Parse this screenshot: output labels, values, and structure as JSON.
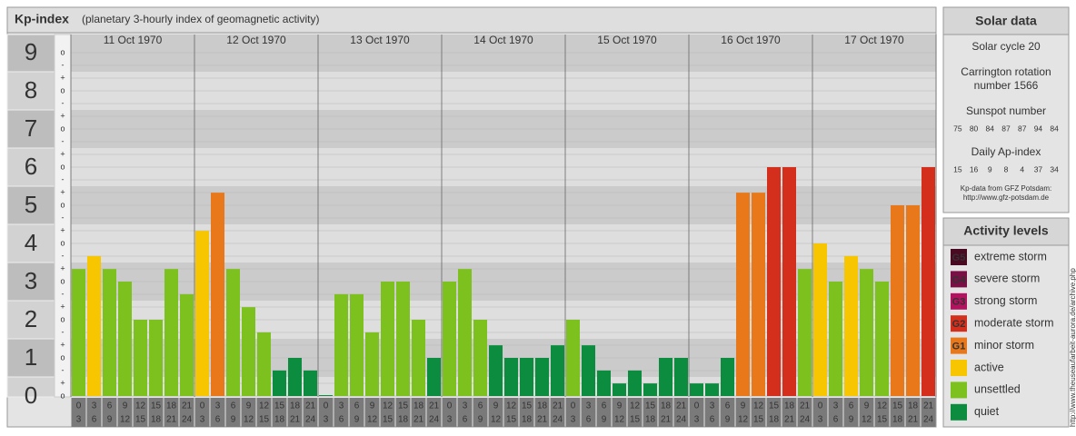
{
  "header": {
    "title": "Kp-index",
    "subtitle": "(planetary 3-hourly index of geomagnetic activity)"
  },
  "chart_data": {
    "type": "bar",
    "ylim": [
      0,
      9
    ],
    "yticks": [
      0,
      1,
      2,
      3,
      4,
      5,
      6,
      7,
      8,
      9
    ],
    "subtick_labels": [
      "-",
      "o",
      "+"
    ],
    "hours": [
      [
        "0",
        "3"
      ],
      [
        "3",
        "6"
      ],
      [
        "6",
        "9"
      ],
      [
        "9",
        "12"
      ],
      [
        "12",
        "15"
      ],
      [
        "15",
        "18"
      ],
      [
        "18",
        "21"
      ],
      [
        "21",
        "24"
      ]
    ],
    "days": [
      {
        "date": "11 Oct 1970",
        "values": [
          3.33,
          3.67,
          3.33,
          3,
          2,
          2,
          3.33,
          2.67
        ],
        "colors": [
          "#7dc11f",
          "#f7c600",
          "#7dc11f",
          "#7dc11f",
          "#7dc11f",
          "#7dc11f",
          "#7dc11f",
          "#7dc11f"
        ]
      },
      {
        "date": "12 Oct 1970",
        "values": [
          4.33,
          5.33,
          3.33,
          2.33,
          1.67,
          0.67,
          1,
          0.67
        ],
        "colors": [
          "#f7c600",
          "#e8781a",
          "#7dc11f",
          "#7dc11f",
          "#7dc11f",
          "#0b8c3f",
          "#0b8c3f",
          "#0b8c3f"
        ]
      },
      {
        "date": "13 Oct 1970",
        "values": [
          0,
          2.67,
          2.67,
          1.67,
          3,
          3,
          2,
          1
        ],
        "colors": [
          "#0b8c3f",
          "#7dc11f",
          "#7dc11f",
          "#7dc11f",
          "#7dc11f",
          "#7dc11f",
          "#7dc11f",
          "#0b8c3f"
        ]
      },
      {
        "date": "14 Oct 1970",
        "values": [
          3,
          3.33,
          2,
          1.33,
          1,
          1,
          1,
          1.33
        ],
        "colors": [
          "#7dc11f",
          "#7dc11f",
          "#7dc11f",
          "#0b8c3f",
          "#0b8c3f",
          "#0b8c3f",
          "#0b8c3f",
          "#0b8c3f"
        ]
      },
      {
        "date": "15 Oct 1970",
        "values": [
          2,
          1.33,
          0.67,
          0.33,
          0.67,
          0.33,
          1,
          1
        ],
        "colors": [
          "#7dc11f",
          "#0b8c3f",
          "#0b8c3f",
          "#0b8c3f",
          "#0b8c3f",
          "#0b8c3f",
          "#0b8c3f",
          "#0b8c3f"
        ]
      },
      {
        "date": "16 Oct 1970",
        "values": [
          0.33,
          0.33,
          1,
          5.33,
          5.33,
          6,
          6,
          3.33
        ],
        "colors": [
          "#0b8c3f",
          "#0b8c3f",
          "#0b8c3f",
          "#e8781a",
          "#e8781a",
          "#d42e1c",
          "#d42e1c",
          "#7dc11f"
        ]
      },
      {
        "date": "17 Oct 1970",
        "values": [
          4,
          3,
          3.67,
          3.33,
          3,
          5,
          5,
          6
        ],
        "colors": [
          "#f7c600",
          "#7dc11f",
          "#f7c600",
          "#7dc11f",
          "#7dc11f",
          "#e8781a",
          "#e8781a",
          "#d42e1c"
        ]
      }
    ]
  },
  "solar_data": {
    "title": "Solar data",
    "cycle": "Solar cycle 20",
    "carrington": [
      "Carrington rotation",
      "number 1566"
    ],
    "sunspot_label": "Sunspot number",
    "sunspot_values": [
      75,
      80,
      84,
      87,
      87,
      94,
      84
    ],
    "ap_label": "Daily Ap-index",
    "ap_values": [
      15,
      16,
      9,
      8,
      4,
      37,
      34
    ],
    "source": [
      "Kp-data from GFZ Potsdam:",
      "http://www.gfz-potsdam.de"
    ]
  },
  "activity_levels": {
    "title": "Activity levels",
    "items": [
      {
        "badge": "G5",
        "name": "extreme storm",
        "color": "#4a0a22"
      },
      {
        "badge": "G4",
        "name": "severe storm",
        "color": "#7a0f45"
      },
      {
        "badge": "G3",
        "name": "strong storm",
        "color": "#b3125e"
      },
      {
        "badge": "G2",
        "name": "moderate storm",
        "color": "#d42e1c"
      },
      {
        "badge": "G1",
        "name": "minor storm",
        "color": "#e8781a"
      },
      {
        "name": "active",
        "color": "#f7c600"
      },
      {
        "name": "unsettled",
        "color": "#7dc11f"
      },
      {
        "name": "quiet",
        "color": "#0b8c3f"
      }
    ]
  },
  "watermark": "http://www.theuseaufarbeit-aurora.de/archive.php"
}
